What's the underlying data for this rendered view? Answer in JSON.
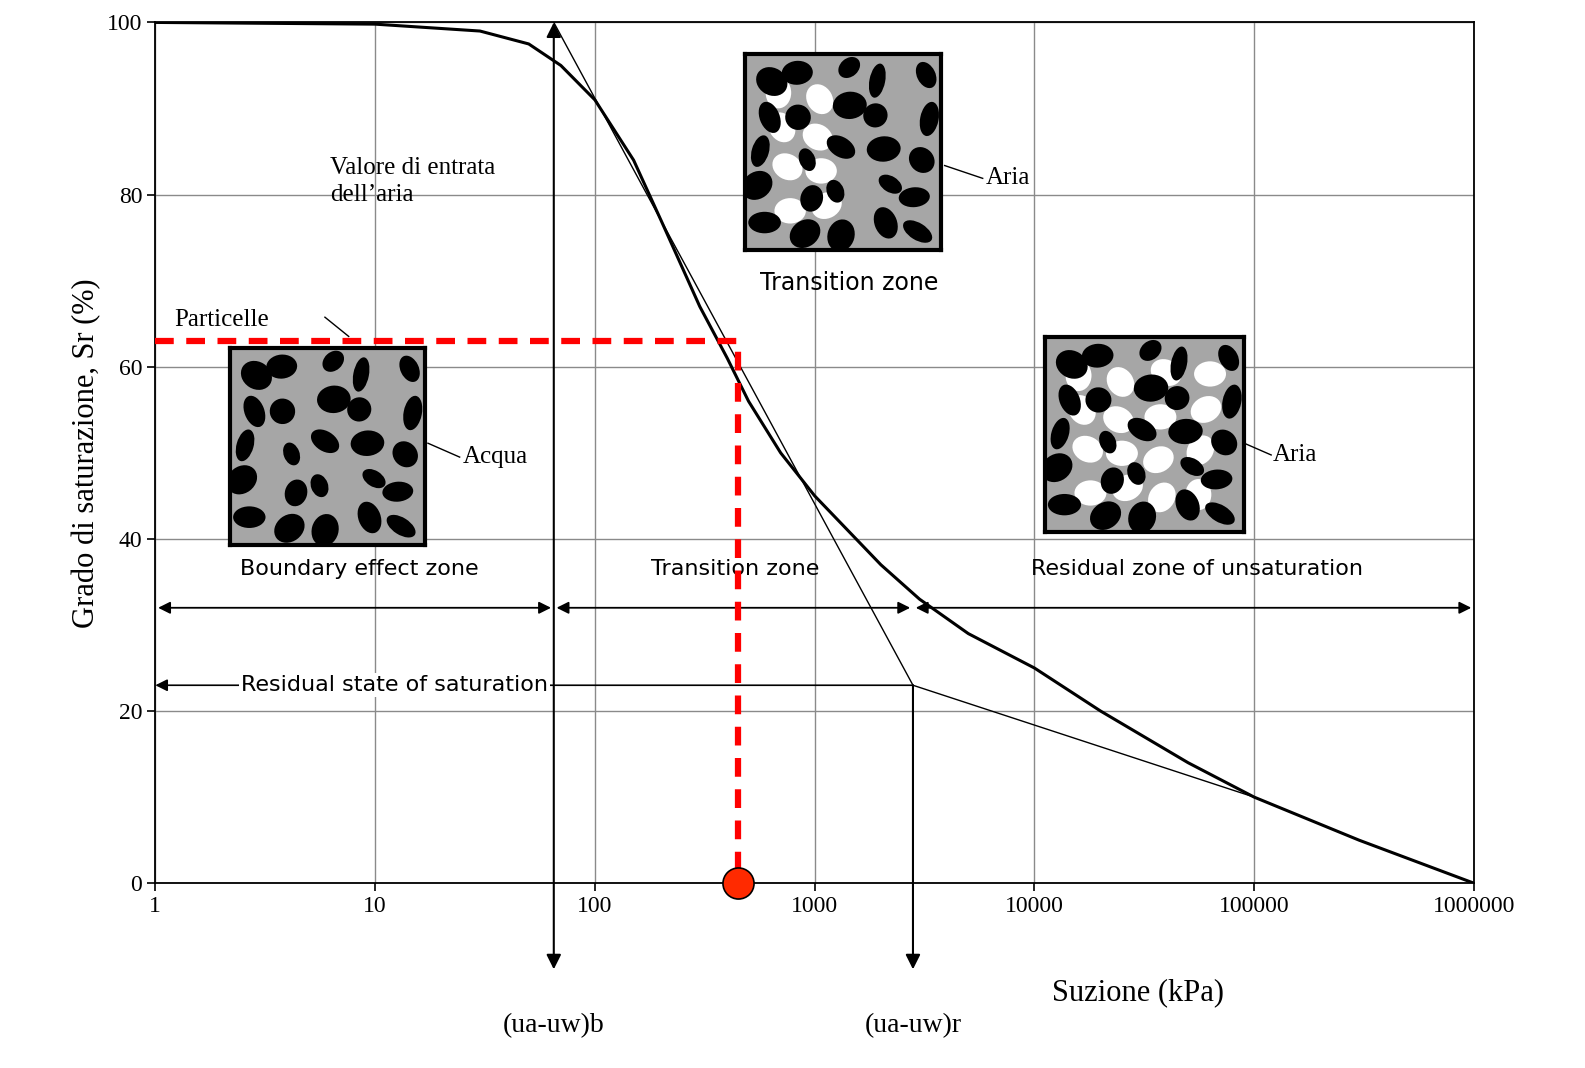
{
  "chart_data": {
    "type": "line",
    "xlabel": "Suzione (kPa)",
    "ylabel": "Grado di saturazione, Sr (%)",
    "log": "x",
    "grid": true,
    "xlim": [
      1,
      1000000
    ],
    "xticks": [
      1,
      10,
      100,
      1000,
      10000,
      100000,
      1000000
    ],
    "ylim": [
      0,
      100
    ],
    "yticks": [
      0,
      20,
      40,
      60,
      80,
      100
    ],
    "series": [
      {
        "x": [
          1,
          10,
          30,
          50,
          70,
          100,
          150,
          200,
          300,
          400,
          500,
          700,
          1000,
          2000,
          3000,
          5000,
          10000,
          20000,
          50000,
          100000,
          300000,
          1000000
        ],
        "values": [
          100,
          99.8,
          99,
          97.5,
          95,
          91,
          84,
          77,
          67,
          61,
          56,
          50,
          45,
          37,
          33,
          29,
          25,
          20,
          14,
          10,
          5,
          0
        ],
        "color": "#000000",
        "line_style": "solid"
      },
      {
        "x": [
          65,
          2800
        ],
        "values": [
          100,
          23
        ],
        "color": "#000000",
        "line_style": "solid"
      },
      {
        "x": [
          2800,
          100000
        ],
        "values": [
          23,
          10
        ],
        "color": "#000000",
        "line_style": "solid"
      },
      {
        "x": [
          1,
          450,
          450
        ],
        "values": [
          63,
          63,
          0
        ],
        "color": "#ff0000",
        "line_style": "dashed"
      },
      {
        "type": "scatter",
        "x": [
          450
        ],
        "values": [
          0
        ],
        "color": "#ff2a00",
        "marker": "o"
      }
    ],
    "air_entry_suction": 65,
    "residual_suction": 2800,
    "residual_saturation": 23,
    "annotations": {
      "air_entry": "Valore di entrata\ndell’aria",
      "air_entry_symbol": "(ua-uw)b",
      "residual_symbol": "(ua-uw)r",
      "particles": "Particelle",
      "water": "Acqua",
      "air_1": "Aria",
      "air_2": "Aria",
      "transition_image": "Transition zone",
      "boundary_zone": "Boundary effect zone",
      "transition_zone": "Transition zone",
      "residual_zone": "Residual zone of unsaturation",
      "residual_state": "Residual state of saturation"
    }
  }
}
